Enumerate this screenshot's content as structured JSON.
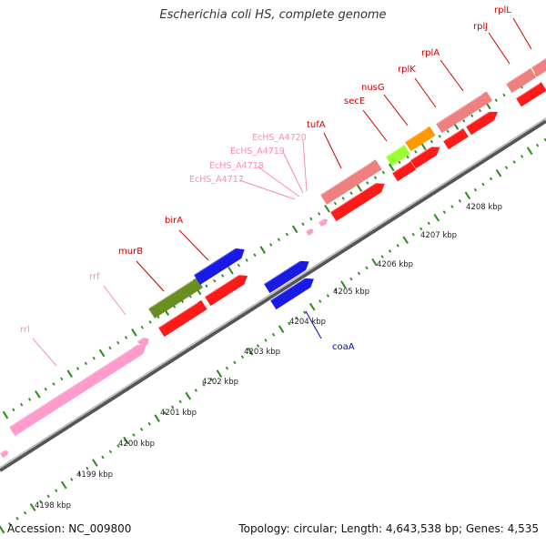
{
  "title": "Escherichia coli HS, complete genome",
  "footer": {
    "accession": "Accession: NC_009800",
    "summary": "Topology: circular; Length: 4,643,538 bp; Genes: 4,535"
  },
  "colors": {
    "background": "#ffffff",
    "backbone": "#9a9a9a",
    "tick": "#2a8a1a",
    "gene_red": "#ff1a1a",
    "gene_salmon": "#f08080",
    "gene_pink": "#ff9ccc",
    "gene_blue": "#1a1ae6",
    "gene_olive": "#6b8e23",
    "gene_lime": "#99ff33",
    "gene_orange": "#ff9900",
    "label_red": "#cc0000",
    "label_pink": "#ff88bb",
    "label_blue": "#0000cc"
  },
  "scale_labels": [
    "4198 kbp",
    "4199 kbp",
    "4200 kbp",
    "4201 kbp",
    "4202 kbp",
    "4203 kbp",
    "4204 kbp",
    "4205 kbp",
    "4206 kbp",
    "4207 kbp",
    "4208 kbp"
  ],
  "gene_labels": {
    "rrl": "rrl",
    "rrf": "rrf",
    "murB": "murB",
    "birA": "birA",
    "EcHS_A4717": "EcHS_A4717",
    "EcHS_A4718": "EcHS_A4718",
    "EcHS_A4719": "EcHS_A4719",
    "EcHS_A4720": "EcHS_A4720",
    "tufA": "tufA",
    "secE": "secE",
    "nusG": "nusG",
    "rplK": "rplK",
    "rplA": "rplA",
    "rplJ": "rplJ",
    "rplL": "rplL",
    "coaA": "coaA"
  }
}
